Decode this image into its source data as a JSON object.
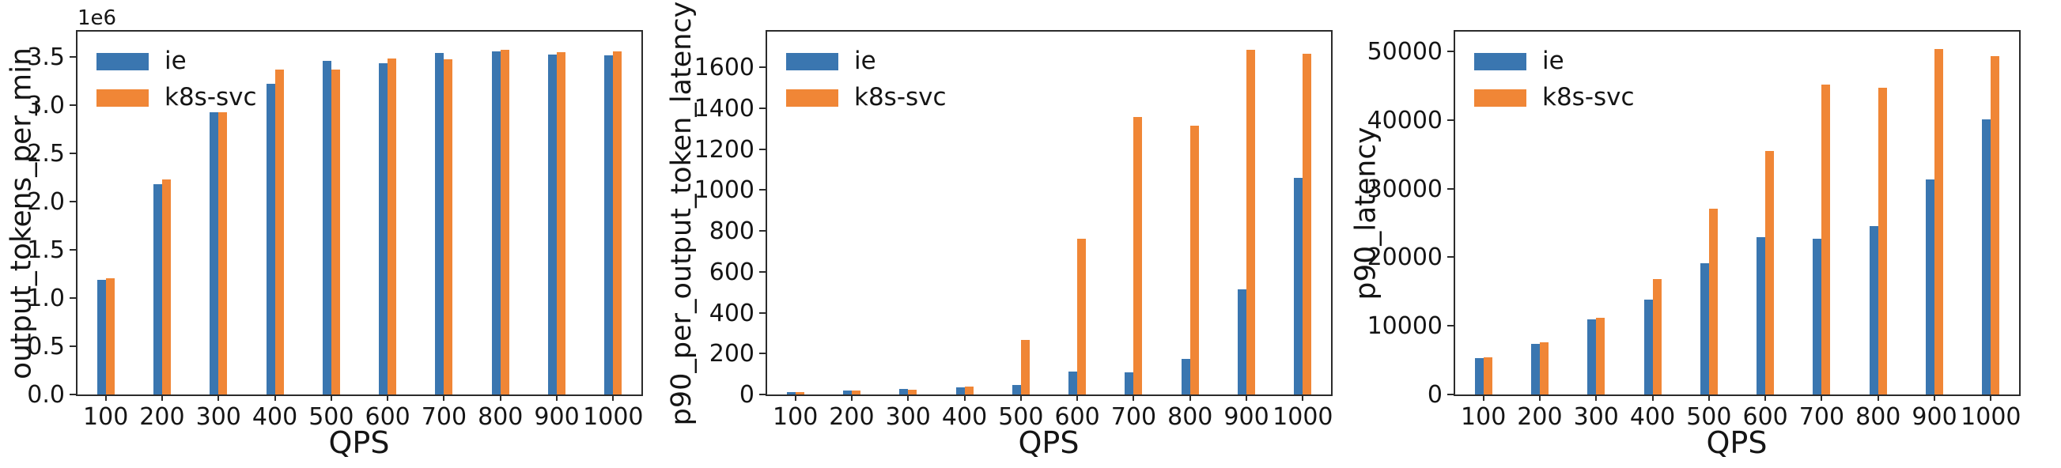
{
  "figure": {
    "background": "#ffffff",
    "series_colors": {
      "ie": "#3a76b0",
      "k8s_svc": "#f08636"
    },
    "spine_color": "#2b2b2b"
  },
  "chart_data": [
    {
      "type": "bar",
      "title": "",
      "ylabel": "output_tokens_per_min",
      "xlabel": "QPS",
      "offset_text": "1e6",
      "grid": false,
      "legend_position": "upper left",
      "categories": [
        "100",
        "200",
        "300",
        "400",
        "500",
        "600",
        "700",
        "800",
        "900",
        "1000"
      ],
      "series": [
        {
          "name": "ie",
          "color": "#3a76b0",
          "values": [
            1190000,
            2180000,
            2930000,
            3220000,
            3460000,
            3440000,
            3540000,
            3560000,
            3530000,
            3520000
          ]
        },
        {
          "name": "k8s-svc",
          "color": "#f08636",
          "values": [
            1210000,
            2230000,
            2930000,
            3370000,
            3370000,
            3490000,
            3480000,
            3580000,
            3550000,
            3560000
          ]
        }
      ],
      "ylim": [
        0,
        3765000
      ],
      "yticks": {
        "values": [
          0,
          500000,
          1000000,
          1500000,
          2000000,
          2500000,
          3000000,
          3500000
        ],
        "labels": [
          "0.0",
          "0.5",
          "1.0",
          "1.5",
          "2.0",
          "2.5",
          "3.0",
          "3.5"
        ]
      }
    },
    {
      "type": "bar",
      "title": "",
      "ylabel": "p90_per_output_token_latency",
      "xlabel": "QPS",
      "offset_text": "",
      "grid": false,
      "legend_position": "upper left",
      "categories": [
        "100",
        "200",
        "300",
        "400",
        "500",
        "600",
        "700",
        "800",
        "900",
        "1000"
      ],
      "series": [
        {
          "name": "ie",
          "color": "#3a76b0",
          "values": [
            11,
            18,
            26,
            33,
            46,
            114,
            107,
            173,
            514,
            1058
          ]
        },
        {
          "name": "k8s-svc",
          "color": "#f08636",
          "values": [
            10,
            18,
            25,
            37,
            268,
            760,
            1357,
            1316,
            1688,
            1665
          ]
        }
      ],
      "ylim": [
        0,
        1775
      ],
      "yticks": {
        "values": [
          0,
          200,
          400,
          600,
          800,
          1000,
          1200,
          1400,
          1600
        ],
        "labels": [
          "0",
          "200",
          "400",
          "600",
          "800",
          "1000",
          "1200",
          "1400",
          "1600"
        ]
      }
    },
    {
      "type": "bar",
      "title": "",
      "ylabel": "p90_latency",
      "xlabel": "QPS",
      "offset_text": "",
      "grid": false,
      "legend_position": "upper left",
      "categories": [
        "100",
        "200",
        "300",
        "400",
        "500",
        "600",
        "700",
        "800",
        "900",
        "1000"
      ],
      "series": [
        {
          "name": "ie",
          "color": "#3a76b0",
          "values": [
            5250,
            7350,
            10900,
            13850,
            19150,
            22950,
            22750,
            24600,
            31300,
            40100
          ]
        },
        {
          "name": "k8s-svc",
          "color": "#f08636",
          "values": [
            5400,
            7600,
            11150,
            16850,
            27050,
            35500,
            45200,
            44700,
            50400,
            49300
          ]
        }
      ],
      "ylim": [
        0,
        52900
      ],
      "yticks": {
        "values": [
          0,
          10000,
          20000,
          30000,
          40000,
          50000
        ],
        "labels": [
          "0",
          "10000",
          "20000",
          "30000",
          "40000",
          "50000"
        ]
      }
    }
  ]
}
